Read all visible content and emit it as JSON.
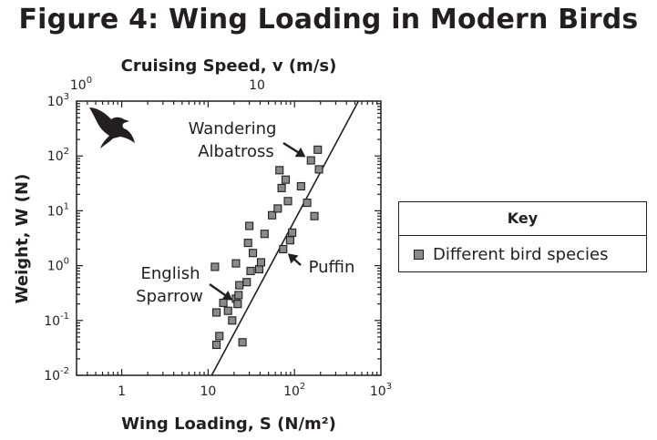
{
  "chart_data": {
    "type": "scatter",
    "title": "Figure 4: Wing Loading in Modern Birds",
    "xlabel": "Wing Loading, S (N/m²)",
    "ylabel": "Weight, W (N)",
    "x2label": "Cruising Speed, v (m/s)",
    "xscale": "log",
    "yscale": "log",
    "xlim": [
      0.3,
      1000
    ],
    "ylim": [
      0.01,
      1000
    ],
    "x_ticks": [
      {
        "value": 1,
        "base": "1",
        "exp": ""
      },
      {
        "value": 10,
        "base": "10",
        "exp": ""
      },
      {
        "value": 100,
        "base": "10",
        "exp": "2"
      },
      {
        "value": 1000,
        "base": "10",
        "exp": "3"
      }
    ],
    "y_ticks": [
      {
        "value": 0.01,
        "base": "10",
        "exp": "-2"
      },
      {
        "value": 0.1,
        "base": "10",
        "exp": "-1"
      },
      {
        "value": 1,
        "base": "10",
        "exp": "0"
      },
      {
        "value": 10,
        "base": "10",
        "exp": "1"
      },
      {
        "value": 100,
        "base": "10",
        "exp": "2"
      },
      {
        "value": 1000,
        "base": "10",
        "exp": "3"
      }
    ],
    "x2_ticks": [
      {
        "label": "10",
        "sup": "0"
      },
      {
        "label": "10",
        "sup": ""
      }
    ],
    "series": [
      {
        "name": "Different bird species",
        "marker": "square",
        "color": "#8a8a8a",
        "points": [
          {
            "x": 12,
            "y": 0.95
          },
          {
            "x": 12.5,
            "y": 0.036
          },
          {
            "x": 12.5,
            "y": 0.14
          },
          {
            "x": 13.5,
            "y": 0.052
          },
          {
            "x": 15,
            "y": 0.21
          },
          {
            "x": 17,
            "y": 0.15
          },
          {
            "x": 19,
            "y": 0.1
          },
          {
            "x": 21,
            "y": 0.25
          },
          {
            "x": 21,
            "y": 1.1
          },
          {
            "x": 22,
            "y": 0.2
          },
          {
            "x": 22.5,
            "y": 0.29
          },
          {
            "x": 23,
            "y": 0.44
          },
          {
            "x": 25,
            "y": 0.04
          },
          {
            "x": 28,
            "y": 0.5
          },
          {
            "x": 29,
            "y": 2.6
          },
          {
            "x": 30,
            "y": 5.3
          },
          {
            "x": 31,
            "y": 0.8
          },
          {
            "x": 33,
            "y": 1.7
          },
          {
            "x": 39,
            "y": 0.86
          },
          {
            "x": 41,
            "y": 1.15
          },
          {
            "x": 45,
            "y": 3.8
          },
          {
            "x": 55,
            "y": 8.3
          },
          {
            "x": 64,
            "y": 11
          },
          {
            "x": 67,
            "y": 55
          },
          {
            "x": 71,
            "y": 26
          },
          {
            "x": 74,
            "y": 2
          },
          {
            "x": 79,
            "y": 37
          },
          {
            "x": 84,
            "y": 15
          },
          {
            "x": 89,
            "y": 2.9
          },
          {
            "x": 94,
            "y": 4
          },
          {
            "x": 119,
            "y": 28
          },
          {
            "x": 140,
            "y": 14
          },
          {
            "x": 155,
            "y": 83
          },
          {
            "x": 170,
            "y": 8
          },
          {
            "x": 186,
            "y": 130
          },
          {
            "x": 192,
            "y": 57
          }
        ]
      },
      {
        "name": "",
        "type": "line",
        "points": [
          {
            "x": 11,
            "y": 0.01
          },
          {
            "x": 550,
            "y": 1000
          }
        ]
      }
    ],
    "annotations": [
      {
        "lines": [
          "Wandering",
          "Albatross"
        ],
        "x": 155,
        "y": 83
      },
      {
        "lines": [
          "English",
          "Sparrow"
        ],
        "x": 22,
        "y": 0.2
      },
      {
        "lines": [
          "Puffin"
        ],
        "x": 74,
        "y": 2
      }
    ],
    "grid": false,
    "legend": {
      "title": "Key",
      "entries": [
        "Different bird species"
      ],
      "position": "right"
    },
    "icons": [
      "bird-silhouette-icon"
    ]
  }
}
